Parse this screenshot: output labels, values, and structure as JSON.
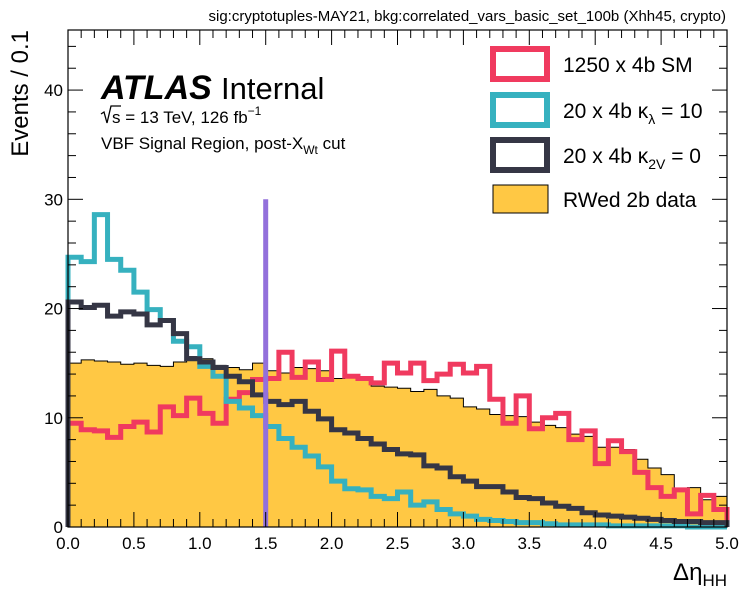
{
  "chart_data": {
    "type": "histogram",
    "title": "sig:cryptotuples-MAY21, bkg:correlated_vars_basic_set_100b (Xhh45, crypto)",
    "xlabel": {
      "main": "Δη",
      "sub": "HH"
    },
    "ylabel": "Events / 0.1",
    "xlim": [
      0,
      5
    ],
    "ylim": [
      0,
      45.5
    ],
    "x_major_ticks": [
      0,
      0.5,
      1,
      1.5,
      2,
      2.5,
      3,
      3.5,
      4,
      4.5,
      5
    ],
    "x_tick_labels": [
      "0.0",
      "0.5",
      "1.0",
      "1.5",
      "2.0",
      "2.5",
      "3.0",
      "3.5",
      "4.0",
      "4.5",
      "5.0"
    ],
    "y_major_ticks": [
      0,
      10,
      20,
      30,
      40
    ],
    "y_tick_labels": [
      "0",
      "10",
      "20",
      "30",
      "40"
    ],
    "grid": false,
    "legend_placement": "top-right",
    "bin_edges_start": 0,
    "bin_width": 0.1,
    "annotations": {
      "atlas": "ATLAS",
      "internal": "Internal",
      "energy": {
        "sqrt": "s",
        "rest": " = 13 TeV, 126 fb",
        "sup": "−1"
      },
      "region": {
        "main": "VBF Signal  Region, post-X",
        "sub": "Wt",
        "tail": " cut"
      }
    },
    "vertical_line": {
      "x": 1.5,
      "y_top": 30,
      "color": "#9370db"
    },
    "series": [
      {
        "name": "RWed 2b data",
        "style": "filled",
        "color": "#ffc844",
        "edge": "#000000",
        "values": [
          15,
          15.3,
          15.2,
          15.1,
          14.9,
          15,
          14.8,
          14.7,
          15.1,
          15.6,
          15.4,
          14.8,
          14.6,
          14.4,
          15,
          14.3,
          14.1,
          14.6,
          14.5,
          14.3,
          13.6,
          13.8,
          13.5,
          12.9,
          12.8,
          12.7,
          12.4,
          12.6,
          12,
          11.8,
          11,
          10.8,
          10.3,
          10.2,
          10.1,
          9.6,
          9.3,
          9.1,
          8.5,
          8.3,
          7.3,
          7.3,
          7.1,
          6.2,
          5.4,
          4.8,
          3.5,
          3.6,
          2.5,
          2.8
        ]
      },
      {
        "name": "1250 x 4b SM",
        "style": "step",
        "color": "#f03a5f",
        "values": [
          9.5,
          8.9,
          8.8,
          8.2,
          9.2,
          9.6,
          8.7,
          11,
          10.2,
          11.8,
          10.4,
          9.5,
          11.7,
          12.3,
          13.5,
          13.6,
          16,
          13.7,
          15.1,
          13.5,
          16.1,
          13.8,
          13.6,
          13.2,
          15,
          14.1,
          15,
          13.4,
          14,
          14.9,
          14.1,
          14.7,
          11.7,
          9.5,
          12,
          9,
          10,
          10.4,
          8,
          8.8,
          5.8,
          7.9,
          6.9,
          5,
          3.6,
          2.8,
          3.4,
          1.2,
          2.9,
          1.6
        ]
      },
      {
        "name": "20 x 4b κλ = 10",
        "legend": {
          "pre": "20 x 4b κ",
          "sub": "λ",
          "post": " = 10"
        },
        "style": "step",
        "color": "#36b1bf",
        "values": [
          24.7,
          24.3,
          28.6,
          24.5,
          23.5,
          21.5,
          19.9,
          18.9,
          17,
          16.5,
          14.7,
          13.8,
          11.5,
          10.9,
          10.2,
          9.2,
          8.1,
          7.3,
          6.5,
          5.5,
          4.2,
          3.5,
          3.4,
          2.8,
          2.6,
          3.2,
          2,
          2.3,
          1.6,
          1.2,
          1,
          0.7,
          0.6,
          0.5,
          0.4,
          0.4,
          0.3,
          0.2,
          0.2,
          0.2,
          0.2,
          0.1,
          0.1,
          0.1,
          0.1,
          0.1,
          0.1,
          0,
          0,
          0
        ]
      },
      {
        "name": "20 x 4b κ2V = 0",
        "legend": {
          "pre": "20 x 4b κ",
          "sub": "2V",
          "post": " = 0"
        },
        "style": "step",
        "color": "#353645",
        "values": [
          20.6,
          20.1,
          20.3,
          19.3,
          19.7,
          19.5,
          18.5,
          18.9,
          17.7,
          15.4,
          15.1,
          14.6,
          13.8,
          13.3,
          12.1,
          11.5,
          11.2,
          11.5,
          10.6,
          9.9,
          8.9,
          8.6,
          8.1,
          7.6,
          7.1,
          6.7,
          6.6,
          5.6,
          5.4,
          4.6,
          4.2,
          3.7,
          3.7,
          3.2,
          2.7,
          2.6,
          2.2,
          1.9,
          1.7,
          1.3,
          1.1,
          1,
          0.9,
          0.8,
          0.7,
          0.6,
          0.5,
          0.5,
          0.4,
          0.4
        ]
      }
    ]
  }
}
